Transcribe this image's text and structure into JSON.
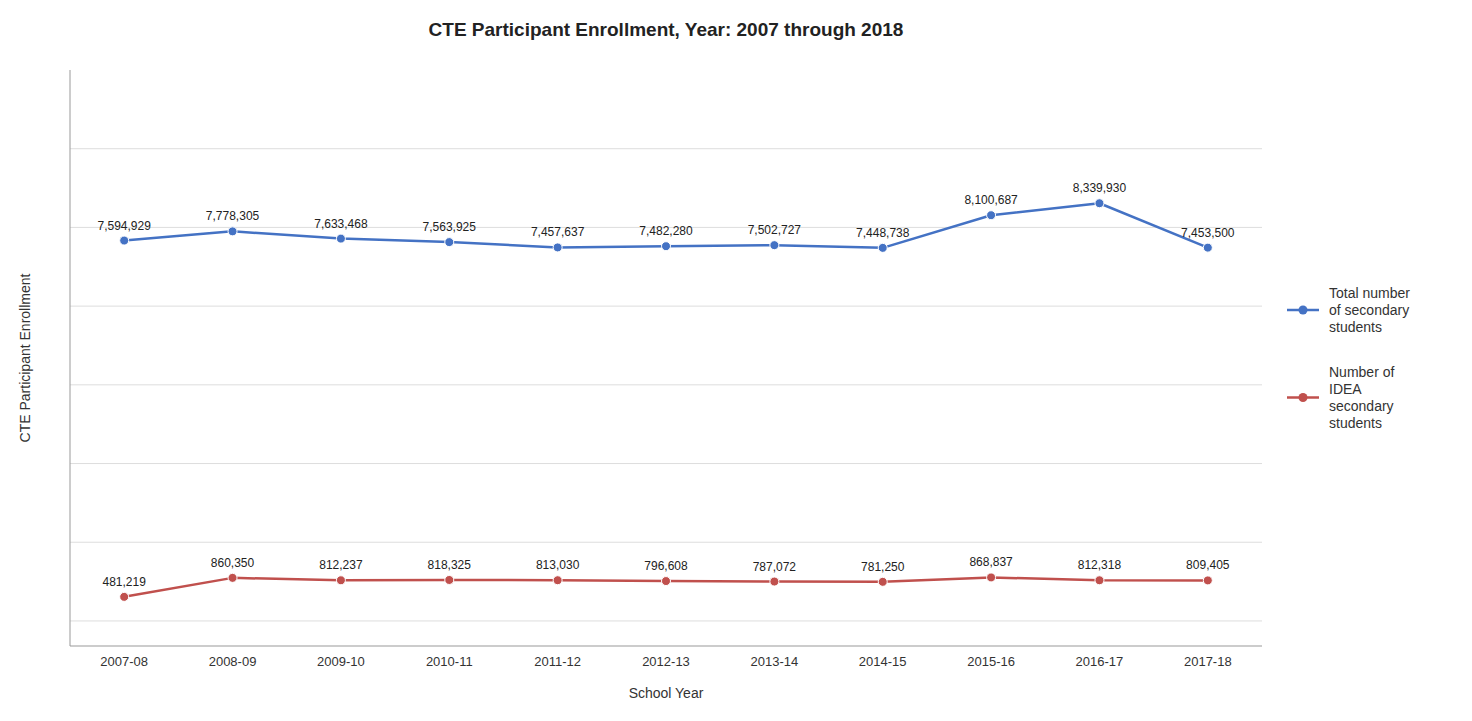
{
  "chart_data": {
    "type": "line",
    "title": "CTE Participant Enrollment, Year: 2007 through 2018",
    "xlabel": "School Year",
    "ylabel": "CTE Participant Enrollment",
    "categories": [
      "2007-08",
      "2008-09",
      "2009-10",
      "2010-11",
      "2011-12",
      "2012-13",
      "2013-14",
      "2014-15",
      "2015-16",
      "2016-17",
      "2017-18"
    ],
    "series": [
      {
        "name": "Total number\nof secondary\nstudents",
        "color": "#4472C4",
        "marker": "circle",
        "values": [
          7594929,
          7778305,
          7633468,
          7563925,
          7457637,
          7482280,
          7502727,
          7448738,
          8100687,
          8339930,
          7453500
        ],
        "value_labels": [
          "7,594,929",
          "7,778,305",
          "7,633,468",
          "7,563,925",
          "7,457,637",
          "7,482,280",
          "7,502,727",
          "7,448,738",
          "8,100,687",
          "8,339,930",
          "7,453,500"
        ]
      },
      {
        "name": "Number of\nIDEA\nsecondary\nstudents",
        "color": "#C0504D",
        "marker": "circle",
        "values": [
          481219,
          860350,
          812237,
          818325,
          813030,
          796608,
          787072,
          781250,
          868837,
          812318,
          809405
        ],
        "value_labels": [
          "481,219",
          "860,350",
          "812,237",
          "818,325",
          "813,030",
          "796,608",
          "787,072",
          "781,250",
          "868,837",
          "812,318",
          "809,405"
        ]
      }
    ],
    "ylim": [
      -500000,
      11000000
    ],
    "yticks": [
      0,
      1571428,
      3142857,
      4714285,
      6285714,
      7857142,
      9428571
    ],
    "grid": true,
    "legend": "right",
    "data_labels": true,
    "tick_labels": "x"
  }
}
